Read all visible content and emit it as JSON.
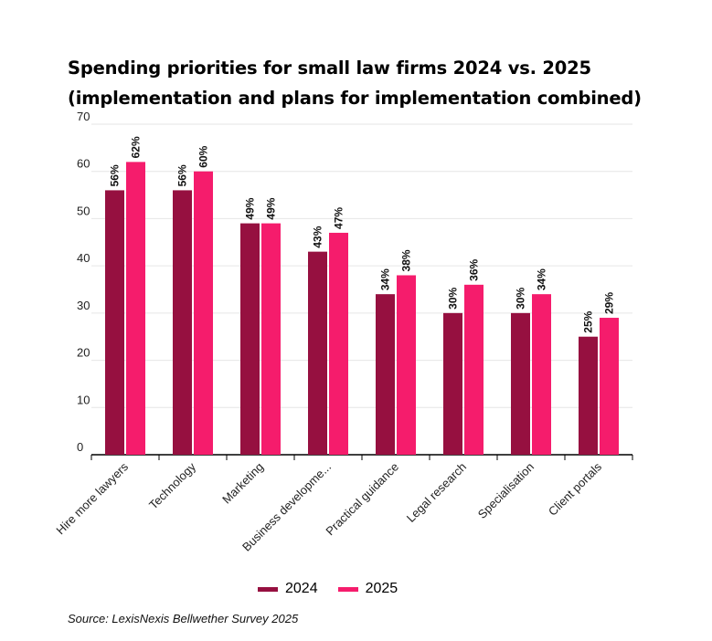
{
  "title_line1": "Spending priorities for small law firms 2024 vs. 2025",
  "title_line2": "(implementation and plans for implementation combined)",
  "source": "Source: LexisNexis Bellwether Survey 2025",
  "colors": {
    "s2024": "#961040",
    "s2025": "#F51C6C",
    "grid": "#e6e6e6",
    "axis": "#000000"
  },
  "chart_data": {
    "type": "bar",
    "categories": [
      "Hire more lawyers",
      "Technology",
      "Marketing",
      "Business developme...",
      "Practical guidance",
      "Legal research",
      "Specialisation",
      "Client portals"
    ],
    "series": [
      {
        "name": "2024",
        "values": [
          56,
          56,
          49,
          43,
          34,
          30,
          30,
          25
        ],
        "labels": [
          "56%",
          "56%",
          "49%",
          "43%",
          "34%",
          "30%",
          "30%",
          "25%"
        ]
      },
      {
        "name": "2025",
        "values": [
          62,
          60,
          49,
          47,
          38,
          36,
          34,
          29
        ],
        "labels": [
          "62%",
          "60%",
          "49%",
          "47%",
          "38%",
          "36%",
          "34%",
          "29%"
        ]
      }
    ],
    "yticks": [
      "0",
      "10",
      "20",
      "30",
      "40",
      "50",
      "60",
      "70"
    ],
    "ylim": [
      0,
      70
    ],
    "grid": true,
    "legend_position": "bottom-center"
  }
}
